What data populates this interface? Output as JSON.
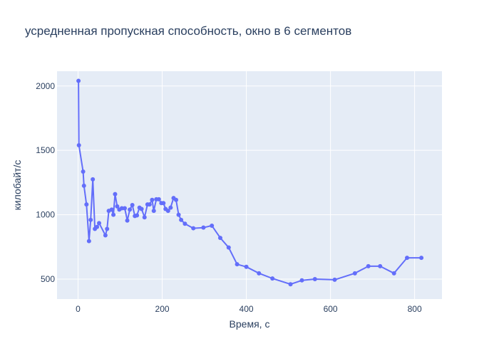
{
  "chart_data": {
    "type": "line",
    "title": "усредненная пропускная способность, окно в 6 сегментов",
    "xlabel": "Время, с",
    "ylabel": "килобайт/с",
    "xlim": [
      -50,
      865
    ],
    "ylim": [
      345,
      2115
    ],
    "xticks": [
      0,
      200,
      400,
      600,
      800
    ],
    "yticks": [
      500,
      1000,
      1500,
      2000
    ],
    "grid": true,
    "legend": "none",
    "colors": {
      "line": "#636efa",
      "plot_bg": "#e5ecf6",
      "grid": "#ffffff",
      "text": "#2a3f5f"
    },
    "series": [
      {
        "x": [
          1,
          2,
          12,
          14,
          20,
          26,
          30,
          35,
          40,
          45,
          50,
          65,
          69,
          73,
          80,
          84,
          88,
          93,
          98,
          104,
          111,
          117,
          123,
          129,
          135,
          140,
          146,
          151,
          158,
          165,
          170,
          176,
          180,
          186,
          192,
          198,
          203,
          208,
          214,
          220,
          227,
          233,
          239,
          245,
          254,
          274,
          298,
          318,
          338,
          358,
          378,
          400,
          430,
          462,
          505,
          532,
          563,
          610,
          658,
          690,
          718,
          751,
          782,
          816
        ],
        "y": [
          2040,
          1540,
          1335,
          1225,
          1080,
          795,
          960,
          1275,
          890,
          905,
          935,
          840,
          890,
          1030,
          1040,
          1000,
          1160,
          1065,
          1040,
          1050,
          1050,
          955,
          1040,
          1075,
          990,
          995,
          1055,
          1045,
          980,
          1080,
          1080,
          1115,
          1030,
          1120,
          1120,
          1090,
          1090,
          1045,
          1030,
          1055,
          1130,
          1115,
          1000,
          960,
          930,
          895,
          900,
          915,
          820,
          745,
          615,
          595,
          545,
          505,
          460,
          490,
          500,
          495,
          545,
          600,
          600,
          545,
          665,
          665
        ]
      }
    ]
  }
}
